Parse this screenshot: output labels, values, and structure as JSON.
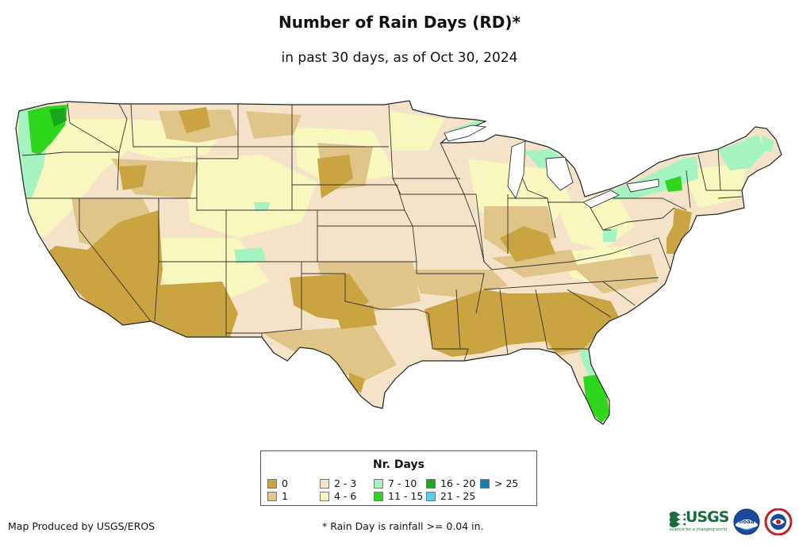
{
  "title": "Number of Rain Days (RD)*",
  "subtitle": "in past 30 days, as of Oct 30, 2024",
  "legend": {
    "title": "Nr. Days",
    "items": [
      {
        "label": "0",
        "color": "#c9a441"
      },
      {
        "label": "1",
        "color": "#dfc588"
      },
      {
        "label": "2 - 3",
        "color": "#f4e3c8"
      },
      {
        "label": "4 - 6",
        "color": "#f8f7bd"
      },
      {
        "label": "7 - 10",
        "color": "#a6f3c2"
      },
      {
        "label": "11 - 15",
        "color": "#2fd61e"
      },
      {
        "label": "16 - 20",
        "color": "#17a81e"
      },
      {
        "label": "21 - 25",
        "color": "#4fd2f2"
      },
      {
        "label": "> 25",
        "color": "#0f7fb8"
      }
    ]
  },
  "credit": "Map Produced by USGS/EROS",
  "footnote": "* Rain Day is rainfall >= 0.04 in.",
  "logos": {
    "usgs": "USGS",
    "usgs_tagline": "science for a changing world",
    "noaa": "noaa",
    "noaa_icon": "noaa-logo-icon",
    "nws_icon": "nws-logo-icon"
  }
}
